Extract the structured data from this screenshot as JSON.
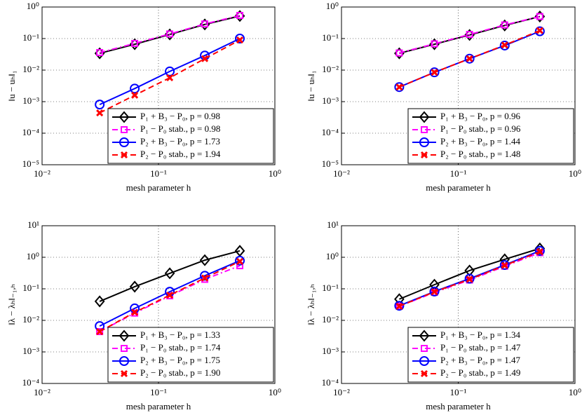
{
  "chart_data": [
    {
      "type": "line",
      "xscale": "log",
      "yscale": "log",
      "grid": true,
      "legend": "lower right",
      "x_label": "mesh parameter h",
      "y_label": "‖u − uₕ‖₁",
      "x": [
        0.03125,
        0.0625,
        0.125,
        0.25,
        0.5
      ],
      "xlim": [
        0.01,
        1
      ],
      "xticks": [
        {
          "value": 0.01,
          "label": "10⁻²"
        },
        {
          "value": 0.1,
          "label": "10⁻¹"
        },
        {
          "value": 1,
          "label": "10⁰"
        }
      ],
      "ylim": [
        1e-05,
        1
      ],
      "yticks": [
        {
          "value": 1e-05,
          "label": "10⁻⁵"
        },
        {
          "value": 0.0001,
          "label": "10⁻⁴"
        },
        {
          "value": 0.001,
          "label": "10⁻³"
        },
        {
          "value": 0.01,
          "label": "10⁻²"
        },
        {
          "value": 0.1,
          "label": "10⁻¹"
        },
        {
          "value": 1,
          "label": "10⁰"
        }
      ],
      "series": [
        {
          "name": "P₁ + B₃ − P₀, p = 0.98",
          "color": "#000000",
          "marker": "diamond",
          "dash": "solid",
          "values": [
            0.034,
            0.066,
            0.135,
            0.28,
            0.52
          ]
        },
        {
          "name": "P₁ − P₀ stab., p = 0.98",
          "color": "#ff00ff",
          "marker": "square",
          "dash": "dashdot",
          "values": [
            0.036,
            0.07,
            0.14,
            0.29,
            0.54
          ]
        },
        {
          "name": "P₂ + B₃ − P₀, p = 1.73",
          "color": "#0000ff",
          "marker": "circle",
          "dash": "solid",
          "values": [
            0.00081,
            0.0026,
            0.0091,
            0.029,
            0.1
          ]
        },
        {
          "name": "P₂ − P₀ stab., p = 1.94",
          "color": "#ff0000",
          "marker": "x",
          "dash": "dashed",
          "values": [
            0.00044,
            0.0016,
            0.0057,
            0.023,
            0.09
          ]
        }
      ]
    },
    {
      "type": "line",
      "xscale": "log",
      "yscale": "log",
      "grid": true,
      "legend": "lower right",
      "x_label": "mesh parameter h",
      "y_label": "‖u − uₕ‖₁",
      "x": [
        0.03125,
        0.0625,
        0.125,
        0.25,
        0.5
      ],
      "xlim": [
        0.01,
        1
      ],
      "xticks": [
        {
          "value": 0.01,
          "label": "10⁻²"
        },
        {
          "value": 0.1,
          "label": "10⁻¹"
        },
        {
          "value": 1,
          "label": "10⁰"
        }
      ],
      "ylim": [
        1e-05,
        1
      ],
      "yticks": [
        {
          "value": 1e-05,
          "label": "10⁻⁵"
        },
        {
          "value": 0.0001,
          "label": "10⁻⁴"
        },
        {
          "value": 0.001,
          "label": "10⁻³"
        },
        {
          "value": 0.01,
          "label": "10⁻²"
        },
        {
          "value": 0.1,
          "label": "10⁻¹"
        },
        {
          "value": 1,
          "label": "10⁰"
        }
      ],
      "series": [
        {
          "name": "P₁ + B₃ − P₀, p = 0.96",
          "color": "#000000",
          "marker": "diamond",
          "dash": "solid",
          "values": [
            0.034,
            0.066,
            0.13,
            0.26,
            0.5
          ]
        },
        {
          "name": "P₁ − P₀ stab., p = 0.96",
          "color": "#ff00ff",
          "marker": "square",
          "dash": "dashdot",
          "values": [
            0.035,
            0.068,
            0.135,
            0.27,
            0.5
          ]
        },
        {
          "name": "P₂ + B₃ − P₀, p = 1.44",
          "color": "#0000ff",
          "marker": "circle",
          "dash": "solid",
          "values": [
            0.0029,
            0.0085,
            0.023,
            0.06,
            0.17
          ]
        },
        {
          "name": "P₂ − P₀ stab., p = 1.48",
          "color": "#ff0000",
          "marker": "x",
          "dash": "dashed",
          "values": [
            0.0029,
            0.0085,
            0.023,
            0.062,
            0.18
          ]
        }
      ]
    },
    {
      "type": "line",
      "xscale": "log",
      "yscale": "log",
      "grid": true,
      "legend": "lower right",
      "x_label": "mesh parameter h",
      "y_label": "‖λ − λₕ‖₋₁,ₕ",
      "x": [
        0.03125,
        0.0625,
        0.125,
        0.25,
        0.5
      ],
      "xlim": [
        0.01,
        1
      ],
      "xticks": [
        {
          "value": 0.01,
          "label": "10⁻²"
        },
        {
          "value": 0.1,
          "label": "10⁻¹"
        },
        {
          "value": 1,
          "label": "10⁰"
        }
      ],
      "ylim": [
        0.0001,
        10
      ],
      "yticks": [
        {
          "value": 0.0001,
          "label": "10⁻⁴"
        },
        {
          "value": 0.001,
          "label": "10⁻³"
        },
        {
          "value": 0.01,
          "label": "10⁻²"
        },
        {
          "value": 0.1,
          "label": "10⁻¹"
        },
        {
          "value": 1,
          "label": "10⁰"
        },
        {
          "value": 10,
          "label": "10¹"
        }
      ],
      "series": [
        {
          "name": "P₁ + B₃ − P₀, p = 1.33",
          "color": "#000000",
          "marker": "diamond",
          "dash": "solid",
          "values": [
            0.04,
            0.117,
            0.31,
            0.81,
            1.6
          ]
        },
        {
          "name": "P₁ − P₀ stab., p = 1.74",
          "color": "#ff00ff",
          "marker": "square",
          "dash": "dashdot",
          "values": [
            0.0044,
            0.017,
            0.06,
            0.2,
            0.54
          ]
        },
        {
          "name": "P₂ + B₃ − P₀, p = 1.75",
          "color": "#0000ff",
          "marker": "circle",
          "dash": "solid",
          "values": [
            0.0066,
            0.024,
            0.081,
            0.26,
            0.78
          ]
        },
        {
          "name": "P₂ − P₀ stab., p = 1.90",
          "color": "#ff0000",
          "marker": "x",
          "dash": "dashed",
          "values": [
            0.0044,
            0.018,
            0.063,
            0.22,
            0.74
          ]
        }
      ]
    },
    {
      "type": "line",
      "xscale": "log",
      "yscale": "log",
      "grid": true,
      "legend": "lower right",
      "x_label": "mesh parameter h",
      "y_label": "‖λ − λₕ‖₋₁,ₕ",
      "x": [
        0.03125,
        0.0625,
        0.125,
        0.25,
        0.5
      ],
      "xlim": [
        0.01,
        1
      ],
      "xticks": [
        {
          "value": 0.01,
          "label": "10⁻²"
        },
        {
          "value": 0.1,
          "label": "10⁻¹"
        },
        {
          "value": 1,
          "label": "10⁰"
        }
      ],
      "ylim": [
        0.0001,
        10
      ],
      "yticks": [
        {
          "value": 0.0001,
          "label": "10⁻⁴"
        },
        {
          "value": 0.001,
          "label": "10⁻³"
        },
        {
          "value": 0.01,
          "label": "10⁻²"
        },
        {
          "value": 0.1,
          "label": "10⁻¹"
        },
        {
          "value": 1,
          "label": "10⁰"
        },
        {
          "value": 10,
          "label": "10¹"
        }
      ],
      "series": [
        {
          "name": "P₁ + B₃ − P₀, p = 1.34",
          "color": "#000000",
          "marker": "diamond",
          "dash": "solid",
          "values": [
            0.047,
            0.135,
            0.38,
            0.86,
            1.9
          ]
        },
        {
          "name": "P₁ − P₀ stab., p = 1.47",
          "color": "#ff00ff",
          "marker": "square",
          "dash": "dashdot",
          "values": [
            0.028,
            0.077,
            0.19,
            0.52,
            1.4
          ]
        },
        {
          "name": "P₂ + B₃ − P₀, p = 1.47",
          "color": "#0000ff",
          "marker": "circle",
          "dash": "solid",
          "values": [
            0.029,
            0.082,
            0.21,
            0.57,
            1.6
          ]
        },
        {
          "name": "P₂ − P₀ stab., p = 1.49",
          "color": "#ff0000",
          "marker": "x",
          "dash": "dashed",
          "values": [
            0.028,
            0.08,
            0.2,
            0.55,
            1.5
          ]
        }
      ]
    }
  ]
}
